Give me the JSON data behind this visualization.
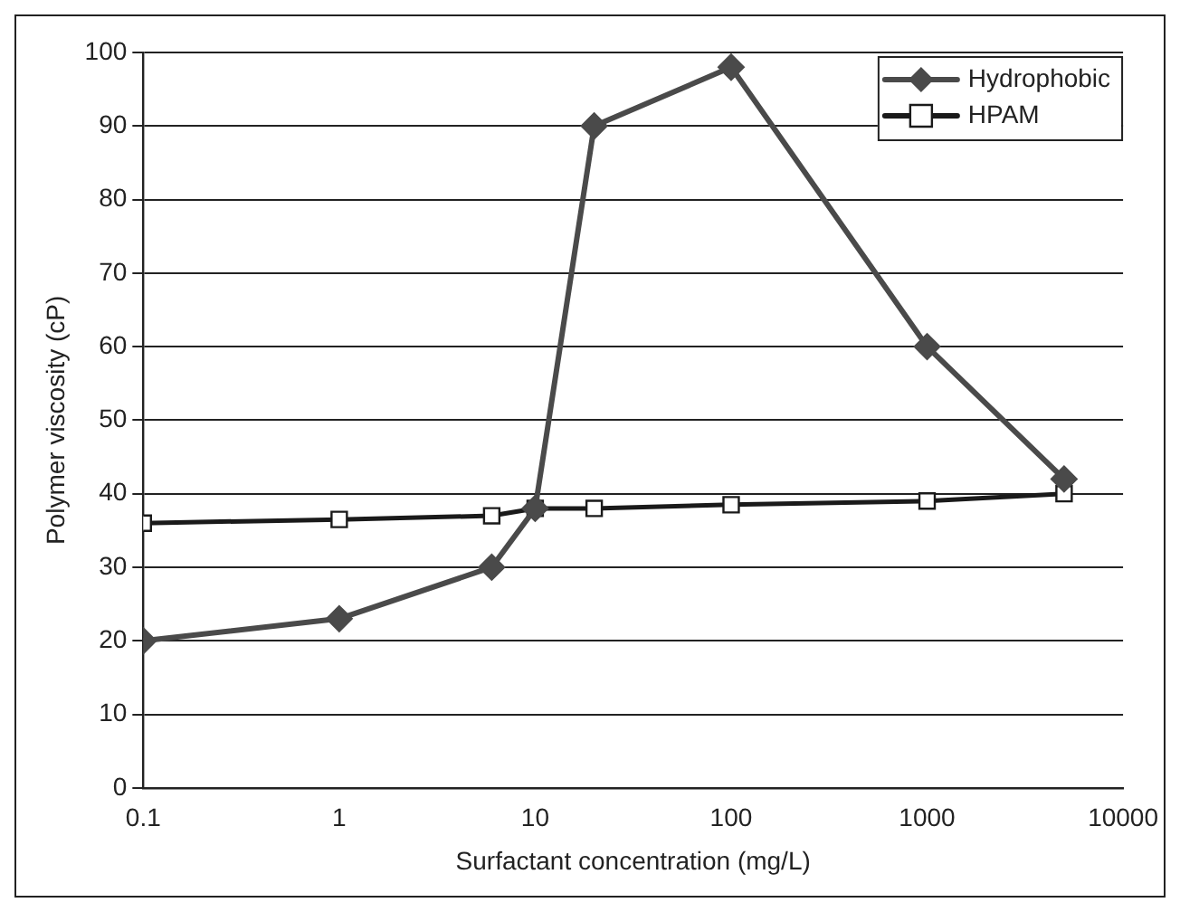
{
  "chart_data": {
    "type": "line",
    "xlabel": "Surfactant concentration (mg/L)",
    "ylabel": "Polymer viscosity (cP)",
    "x": [
      0.1,
      1,
      6,
      10,
      20,
      100,
      1000,
      5000
    ],
    "series": [
      {
        "name": "Hydrophobic",
        "color": "#4a4a4a",
        "marker": "diamond",
        "values": [
          20,
          23,
          30,
          38,
          90,
          98,
          60,
          42
        ]
      },
      {
        "name": "HPAM",
        "color": "#1a1a1a",
        "marker": "square",
        "values": [
          36,
          36.5,
          37,
          38,
          38,
          38.5,
          39,
          40
        ]
      }
    ],
    "log": "x",
    "xlim": [
      0.1,
      10000
    ],
    "xticks": [
      0.1,
      1,
      10,
      100,
      1000,
      10000
    ],
    "ylim": [
      0,
      100
    ],
    "yticks": [
      0,
      10,
      20,
      30,
      40,
      50,
      60,
      70,
      80,
      90,
      100
    ],
    "grid": "y",
    "legend": "top right",
    "line_style": "solid"
  }
}
